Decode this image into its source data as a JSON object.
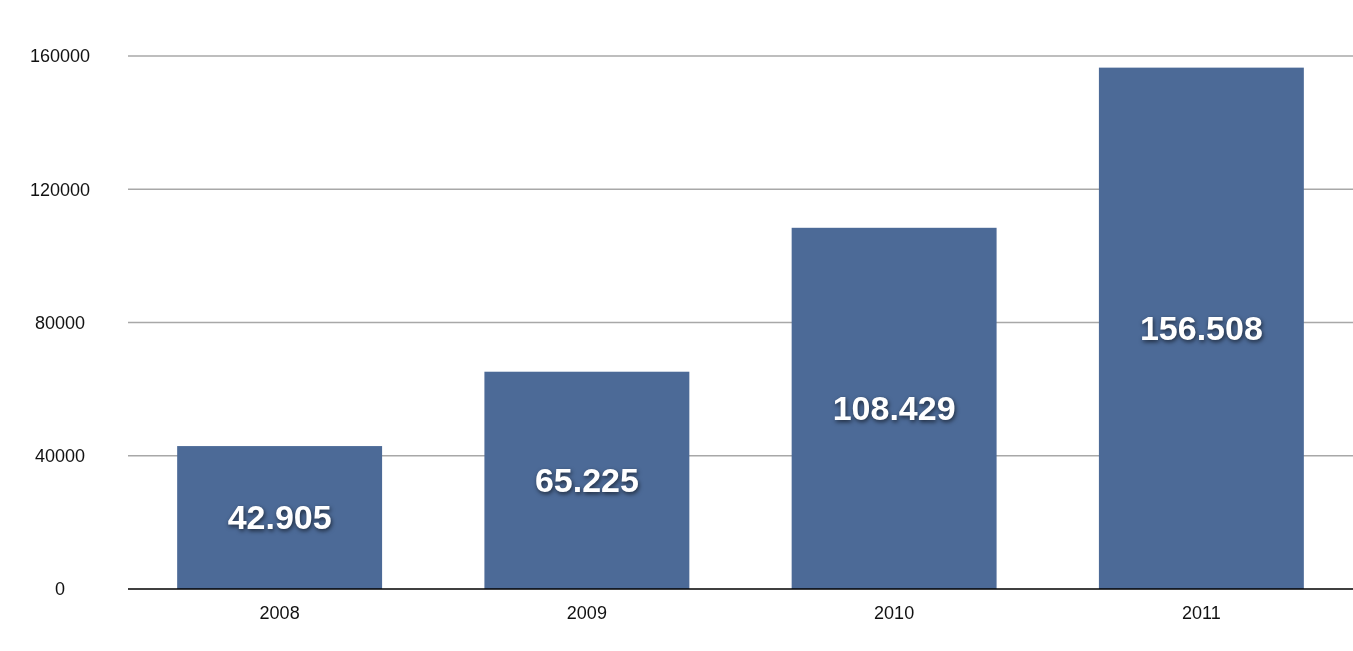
{
  "chart_data": {
    "type": "bar",
    "categories": [
      "2008",
      "2009",
      "2010",
      "2011"
    ],
    "values": [
      42905,
      65225,
      108429,
      156508
    ],
    "value_labels": [
      "42.905",
      "65.225",
      "108.429",
      "156.508"
    ],
    "color": "#4c6a97",
    "ylim": [
      0,
      160000
    ],
    "yticks": [
      0,
      40000,
      80000,
      120000,
      160000
    ],
    "grid": "y"
  }
}
